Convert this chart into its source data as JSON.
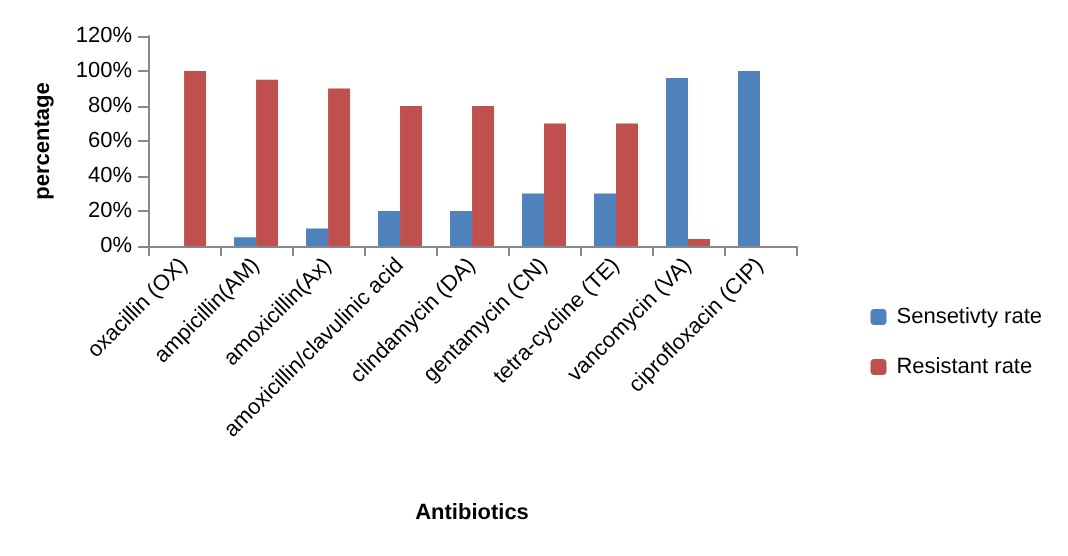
{
  "chart_data": {
    "type": "bar",
    "xlabel": "Antibiotics",
    "ylabel": "percentage",
    "categories": [
      "oxacillin (OX)",
      "ampicillin(AM)",
      "amoxicillin(Ax)",
      "amoxicillin/clavulinic acid",
      "clindamycin (DA)",
      "gentamycin (CN)",
      "tetra-cycline (TE)",
      "vancomycin (VA)",
      "ciprofloxacin (CIP)"
    ],
    "series": [
      {
        "name": "Sensetivty rate",
        "color": "#4f81bd",
        "values": [
          0,
          5,
          10,
          20,
          20,
          30,
          30,
          96,
          100
        ]
      },
      {
        "name": "Resistant rate",
        "color": "#c0504d",
        "values": [
          100,
          95,
          90,
          80,
          80,
          70,
          70,
          4,
          0
        ]
      }
    ],
    "ylim": [
      0,
      120
    ],
    "yticks": [
      {
        "value": 0,
        "label": "0%"
      },
      {
        "value": 20,
        "label": "20%"
      },
      {
        "value": 40,
        "label": "40%"
      },
      {
        "value": 60,
        "label": "60%"
      },
      {
        "value": 80,
        "label": "80%"
      },
      {
        "value": 100,
        "label": "100%"
      },
      {
        "value": 120,
        "label": "120%"
      }
    ],
    "grid": false,
    "legend": "right"
  }
}
